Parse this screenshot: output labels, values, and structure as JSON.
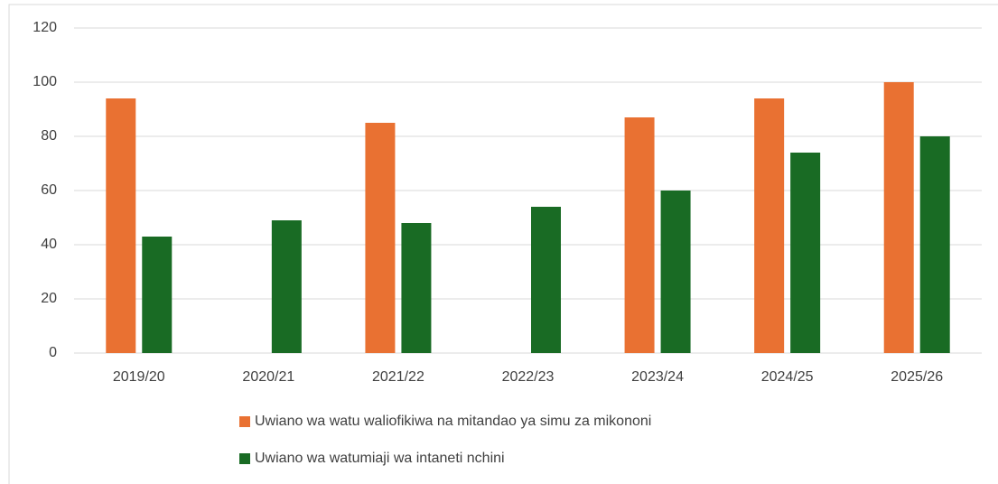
{
  "chart_data": {
    "type": "bar",
    "categories": [
      "2019/20",
      "2020/21",
      "2021/22",
      "2022/23",
      "2023/24",
      "2024/25",
      "2025/26"
    ],
    "series": [
      {
        "name": "Uwiano wa watu waliofikiwa na mitandao ya simu za mikononi",
        "color": "#e97132",
        "values": [
          94,
          null,
          85,
          null,
          87,
          94,
          100
        ]
      },
      {
        "name": "Uwiano wa watumiaji wa intaneti nchini",
        "color": "#196b24",
        "values": [
          43,
          49,
          48,
          54,
          60,
          74,
          80
        ]
      }
    ],
    "ylim": [
      0,
      120
    ],
    "yticks": [
      0,
      20,
      40,
      60,
      80,
      100,
      120
    ],
    "grid": true,
    "legend": "bottom"
  }
}
